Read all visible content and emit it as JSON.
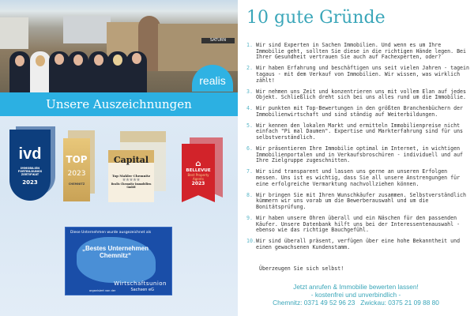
{
  "left": {
    "logo": "realis",
    "banner": "Unsere Auszeichnungen",
    "store_sign": "SATURN",
    "awards": [
      {
        "name": "ivd",
        "lines": [
          "ivd",
          "IMMOBILIEN FORTBILDUNGS ZERTIFIKAT",
          "2023"
        ]
      },
      {
        "name": "focus",
        "lines": [
          "TOP",
          "2023",
          "CHEMNITZ"
        ]
      },
      {
        "name": "capital",
        "lines": [
          "Capital",
          "Top Makler Chemnitz",
          "★★★★★",
          "Realis Chemnitz Immobilien GmbH"
        ]
      },
      {
        "name": "bellevue",
        "lines": [
          "BELLEVUE",
          "Best Property Agents",
          "2023"
        ]
      }
    ],
    "wirtschaftsunion": {
      "intro": "Diese Unternehmen wurde ausgezeichnet als",
      "title": "„Bestes Unternehmen Chemnitz“",
      "org": "Wirtschaftsunion",
      "org_sub": "Sachsen eG",
      "note": "organisiert von der"
    }
  },
  "right": {
    "title": "10 gute Gründe",
    "items": [
      {
        "n": "1.",
        "text": "Wir sind Experten in Sachen Immobilien. Und wenn es um Ihre Immobilie geht, sollten Sie diese in die richtigen Hände legen. Bei Ihrer Gesundheit vertrauen Sie auch auf Fachexperten, oder?"
      },
      {
        "n": "2.",
        "text": "Wir haben Erfahrung und beschäftigen uns seit vielen Jahren - tagein tagaus - mit dem Verkauf von Immobilien. Wir wissen, was wirklich zählt!"
      },
      {
        "n": "3.",
        "text": "Wir nehmen uns Zeit und konzentrieren uns mit vollem Elan auf jedes Objekt. Schließlich dreht sich bei uns alles rund um die Immobilie."
      },
      {
        "n": "4.",
        "text": "Wir punkten mit Top-Bewertungen in den größten Branchenbüchern der Immobilienwirtschaft und sind ständig auf Weiterbildungen."
      },
      {
        "n": "5.",
        "text": "Wir kennen den lokalen Markt und ermitteln Immobilienpreise nicht einfach \"Pi mal Daumen\". Expertise und Markterfahrung sind für uns selbstverständlich."
      },
      {
        "n": "6.",
        "text": "Wir präsentieren Ihre Immobilie optimal im Internet, in wichtigen Immobilienportalen und in Verkaufsbroschüren - individuell und auf Ihre Zielgruppe zugeschnitten."
      },
      {
        "n": "7.",
        "text": "Wir sind transparent und lassen uns gerne an unseren Erfolgen messen. Uns ist es wichtig, dass Sie all unsere Anstrengungen für eine erfolgreiche Vermarktung nachvollziehen können."
      },
      {
        "n": "8.",
        "text": "Wir bringen Sie mit Ihren Wunschkäufer zusammen. Selbstverständlich kümmern wir uns vorab um die Bewerberauswahl und um die Bonitätsprüfung."
      },
      {
        "n": "9.",
        "text": "Wir haben unsere Ohren überall und ein Näschen für den passenden Käufer. Unsere Datenbank hilft uns bei der Interessentenauswahl - ebenso wie das richtige Bauchgefühl."
      },
      {
        "n": "10.",
        "text": "Wir sind überall präsent, verfügen über eine hohe Bekanntheit und einen gewachsenen Kundenstamm."
      }
    ],
    "closing": "Überzeugen Sie sich selbst!",
    "cta": {
      "line1": "Jetzt anrufen & Immobilie bewerten lassen!",
      "line2": "- kostenfrei und unverbindlich -",
      "phones": "Chemnitz: 0371 49 52 96 23   Zwickau: 0375 21 09 88 80"
    },
    "accent": "#3aa6b9"
  }
}
